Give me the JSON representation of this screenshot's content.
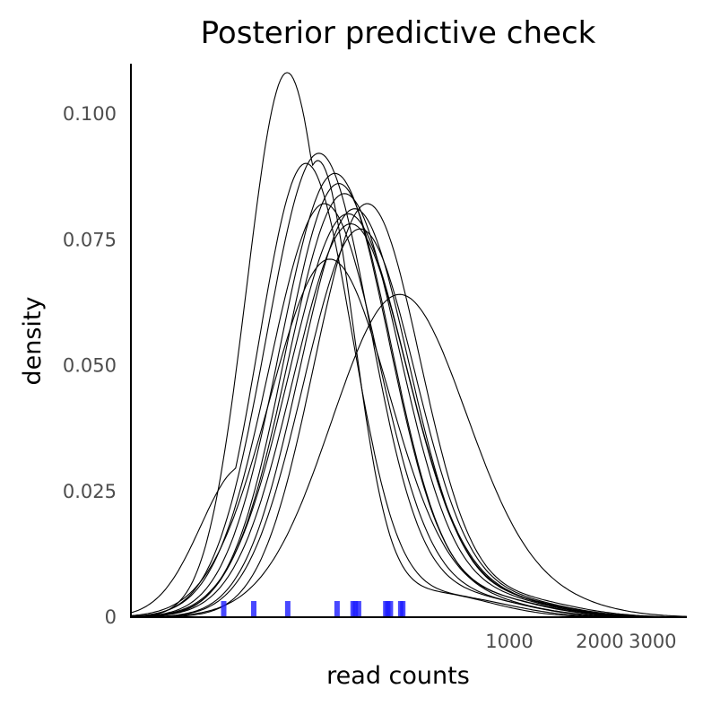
{
  "chart_data": {
    "type": "line",
    "title": "Posterior predictive check",
    "xlabel": "read counts",
    "ylabel": "density",
    "x_scale": "log",
    "xlim": [
      55,
      3900
    ],
    "ylim": [
      0,
      0.11
    ],
    "x_ticks": [
      {
        "value": 1000,
        "label": "1000"
      },
      {
        "value": 2000,
        "label": "2000"
      },
      {
        "value": 3000,
        "label": "3000"
      }
    ],
    "y_ticks": [
      {
        "value": 0,
        "label": "0"
      },
      {
        "value": 0.025,
        "label": "0.025"
      },
      {
        "value": 0.05,
        "label": "0.050"
      },
      {
        "value": 0.075,
        "label": "0.075"
      },
      {
        "value": 0.1,
        "label": "0.100"
      }
    ],
    "grid": false,
    "legend": "none",
    "line_color": "#000000",
    "rug_color": "#1a1aff",
    "rug": [
      112,
      141,
      183,
      267,
      302,
      307,
      315,
      388,
      394,
      402,
      435,
      442
    ],
    "series": [
      {
        "peak": 182,
        "height": 0.108,
        "sigma": 0.31,
        "shoulder": [
          230,
          0.09
        ]
      },
      {
        "peak": 210,
        "height": 0.09,
        "sigma": 0.36,
        "shoulder": [
          130,
          0.03
        ]
      },
      {
        "peak": 232,
        "height": 0.092,
        "sigma": 0.4
      },
      {
        "peak": 242,
        "height": 0.082,
        "sigma": 0.42
      },
      {
        "peak": 270,
        "height": 0.086,
        "sigma": 0.41
      },
      {
        "peak": 262,
        "height": 0.088,
        "sigma": 0.42
      },
      {
        "peak": 282,
        "height": 0.084,
        "sigma": 0.43
      },
      {
        "peak": 305,
        "height": 0.081,
        "sigma": 0.42
      },
      {
        "peak": 296,
        "height": 0.078,
        "sigma": 0.44
      },
      {
        "peak": 318,
        "height": 0.077,
        "sigma": 0.43
      },
      {
        "peak": 336,
        "height": 0.082,
        "sigma": 0.41
      },
      {
        "peak": 290,
        "height": 0.08,
        "sigma": 0.45
      },
      {
        "peak": 252,
        "height": 0.071,
        "sigma": 0.46
      },
      {
        "peak": 430,
        "height": 0.064,
        "sigma": 0.52
      }
    ]
  }
}
